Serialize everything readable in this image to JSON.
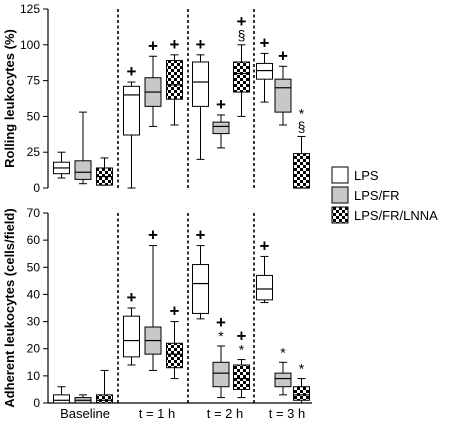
{
  "chart_data": [
    {
      "type": "boxplot",
      "ylabel": "Rolling leukocytes (%)",
      "ylim": [
        0,
        125
      ],
      "yticks": [
        0,
        25,
        50,
        75,
        100,
        125
      ],
      "categories": [
        "Baseline",
        "t = 1 h",
        "t = 2 h",
        "t = 3 h"
      ],
      "series_names": [
        "LPS",
        "LPS/FR",
        "LPS/FR/LNNA"
      ],
      "groups": [
        {
          "category": "Baseline",
          "boxes": [
            {
              "series": "LPS",
              "min": 7,
              "q1": 10,
              "median": 14,
              "q3": 18,
              "max": 25,
              "marks": []
            },
            {
              "series": "LPS/FR",
              "min": 3,
              "q1": 6,
              "median": 11,
              "q3": 19,
              "max": 53,
              "marks": []
            },
            {
              "series": "LPS/FR/LNNA",
              "min": 2,
              "q1": 2,
              "median": 8,
              "q3": 14,
              "max": 21,
              "marks": []
            }
          ]
        },
        {
          "category": "t = 1 h",
          "boxes": [
            {
              "series": "LPS",
              "min": 0,
              "q1": 37,
              "median": 65,
              "q3": 71,
              "max": 74,
              "marks": [
                "+"
              ]
            },
            {
              "series": "LPS/FR",
              "min": 43,
              "q1": 57,
              "median": 67,
              "q3": 77,
              "max": 92,
              "marks": [
                "+"
              ]
            },
            {
              "series": "LPS/FR/LNNA",
              "min": 44,
              "q1": 62,
              "median": 72,
              "q3": 89,
              "max": 93,
              "marks": [
                "+"
              ]
            }
          ]
        },
        {
          "category": "t = 2 h",
          "boxes": [
            {
              "series": "LPS",
              "min": 20,
              "q1": 57,
              "median": 74,
              "q3": 88,
              "max": 93,
              "marks": [
                "+"
              ]
            },
            {
              "series": "LPS/FR",
              "min": 28,
              "q1": 38,
              "median": 43,
              "q3": 46,
              "max": 51,
              "marks": [
                "+"
              ]
            },
            {
              "series": "LPS/FR/LNNA",
              "min": 50,
              "q1": 67,
              "median": 80,
              "q3": 88,
              "max": 100,
              "marks": [
                "+",
                "§"
              ]
            }
          ]
        },
        {
          "category": "t = 3 h",
          "boxes": [
            {
              "series": "LPS",
              "min": 60,
              "q1": 76,
              "median": 82,
              "q3": 87,
              "max": 94,
              "marks": [
                "+"
              ]
            },
            {
              "series": "LPS/FR",
              "min": 44,
              "q1": 53,
              "median": 70,
              "q3": 76,
              "max": 85,
              "marks": [
                "+"
              ]
            },
            {
              "series": "LPS/FR/LNNA",
              "min": 0,
              "q1": 0,
              "median": 0,
              "q3": 24,
              "max": 36,
              "marks": [
                "*",
                "§"
              ]
            }
          ]
        }
      ]
    },
    {
      "type": "boxplot",
      "ylabel": "Adherent leukocytes (cells/field)",
      "ylim": [
        0,
        70
      ],
      "yticks": [
        0,
        10,
        20,
        30,
        40,
        50,
        60,
        70
      ],
      "categories": [
        "Baseline",
        "t = 1 h",
        "t = 2 h",
        "t = 3 h"
      ],
      "series_names": [
        "LPS",
        "LPS/FR",
        "LPS/FR/LNNA"
      ],
      "groups": [
        {
          "category": "Baseline",
          "boxes": [
            {
              "series": "LPS",
              "min": 0,
              "q1": 0,
              "median": 1,
              "q3": 3,
              "max": 6,
              "marks": []
            },
            {
              "series": "LPS/FR",
              "min": 0,
              "q1": 0,
              "median": 1,
              "q3": 2,
              "max": 3,
              "marks": []
            },
            {
              "series": "LPS/FR/LNNA",
              "min": 0,
              "q1": 0,
              "median": 1,
              "q3": 3,
              "max": 12,
              "marks": []
            }
          ]
        },
        {
          "category": "t = 1 h",
          "boxes": [
            {
              "series": "LPS",
              "min": 14,
              "q1": 17,
              "median": 23,
              "q3": 32,
              "max": 35,
              "marks": [
                "+"
              ]
            },
            {
              "series": "LPS/FR",
              "min": 12,
              "q1": 18,
              "median": 23,
              "q3": 28,
              "max": 58,
              "marks": [
                "+"
              ]
            },
            {
              "series": "LPS/FR/LNNA",
              "min": 9,
              "q1": 13,
              "median": 18,
              "q3": 22,
              "max": 30,
              "marks": [
                "+"
              ]
            }
          ]
        },
        {
          "category": "t = 2 h",
          "boxes": [
            {
              "series": "LPS",
              "min": 31,
              "q1": 33,
              "median": 44,
              "q3": 51,
              "max": 58,
              "marks": [
                "+"
              ]
            },
            {
              "series": "LPS/FR",
              "min": 2,
              "q1": 6,
              "median": 11,
              "q3": 15,
              "max": 21,
              "marks": [
                "+",
                "*"
              ]
            },
            {
              "series": "LPS/FR/LNNA",
              "min": 2,
              "q1": 5,
              "median": 9,
              "q3": 14,
              "max": 16,
              "marks": [
                "+",
                "*"
              ]
            }
          ]
        },
        {
          "category": "t = 3 h",
          "boxes": [
            {
              "series": "LPS",
              "min": 37,
              "q1": 38,
              "median": 42,
              "q3": 47,
              "max": 54,
              "marks": [
                "+"
              ]
            },
            {
              "series": "LPS/FR",
              "min": 3,
              "q1": 6,
              "median": 9,
              "q3": 11,
              "max": 15,
              "marks": [
                "*"
              ]
            },
            {
              "series": "LPS/FR/LNNA",
              "min": 0,
              "q1": 1,
              "median": 3,
              "q3": 6,
              "max": 9,
              "marks": [
                "*"
              ]
            }
          ]
        }
      ]
    }
  ],
  "legend": [
    {
      "label": "LPS",
      "fill": "white"
    },
    {
      "label": "LPS/FR",
      "fill": "gray"
    },
    {
      "label": "LPS/FR/LNNA",
      "fill": "checker"
    }
  ],
  "colors": {
    "gray_fill": "#c8c8c8",
    "stroke": "#000000",
    "background": "#ffffff"
  }
}
